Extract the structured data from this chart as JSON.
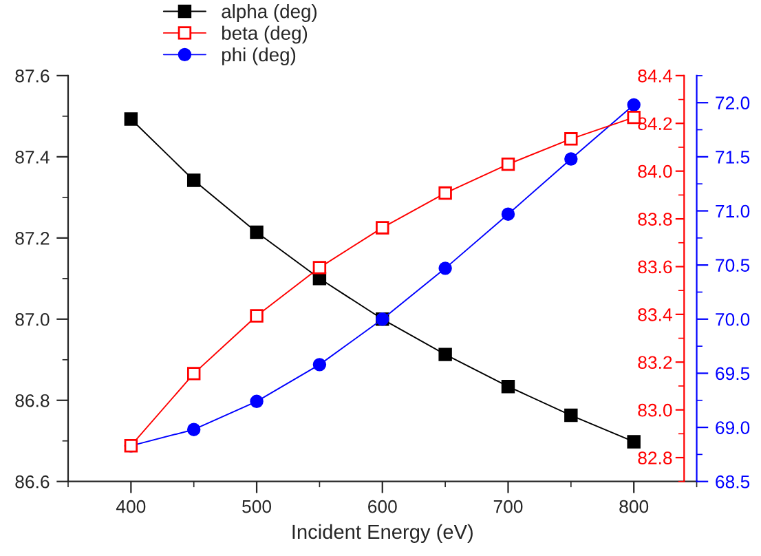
{
  "chart_data": {
    "type": "line",
    "xlabel": "Incident Energy (eV)",
    "x": [
      400,
      450,
      500,
      550,
      600,
      650,
      700,
      750,
      800
    ],
    "series": [
      {
        "name": "alpha (deg)",
        "color": "#000000",
        "marker": "square",
        "values": [
          87.493,
          87.342,
          87.214,
          87.1,
          87.0,
          86.913,
          86.834,
          86.763,
          86.698
        ]
      },
      {
        "name": "beta (deg)",
        "color": "#ff0000",
        "marker": "square-open",
        "axis": "y2",
        "values": [
          82.85,
          83.152,
          83.394,
          83.596,
          83.763,
          83.908,
          84.029,
          84.135,
          84.225
        ]
      },
      {
        "name": "phi (deg)",
        "color": "#0000ff",
        "marker": "circle",
        "axis": "y3",
        "values": [
          68.83,
          68.98,
          69.24,
          69.58,
          70.0,
          70.47,
          70.97,
          71.48,
          71.98
        ]
      }
    ],
    "xlim": [
      350,
      850
    ],
    "xticks": [
      400,
      500,
      600,
      700,
      800
    ],
    "ylim": [
      86.6,
      87.6
    ],
    "yticks": [
      {
        "value": 86.6,
        "label": "86.6"
      },
      {
        "value": 86.8,
        "label": "86.8"
      },
      {
        "value": 87.0,
        "label": "87.0"
      },
      {
        "value": 87.2,
        "label": "87.2"
      },
      {
        "value": 87.4,
        "label": "87.4"
      },
      {
        "value": 87.6,
        "label": "87.6"
      }
    ],
    "y2lim": [
      82.7,
      84.4
    ],
    "y2ticks": [
      {
        "value": 82.8,
        "label": "82.8"
      },
      {
        "value": 83.0,
        "label": "83.0"
      },
      {
        "value": 83.2,
        "label": "83.2"
      },
      {
        "value": 83.4,
        "label": "83.4"
      },
      {
        "value": 83.6,
        "label": "83.6"
      },
      {
        "value": 83.8,
        "label": "83.8"
      },
      {
        "value": 84.0,
        "label": "84.0"
      },
      {
        "value": 84.2,
        "label": "84.2"
      },
      {
        "value": 84.4,
        "label": "84.4"
      }
    ],
    "y3lim": [
      68.5,
      72.25
    ],
    "y3ticks": [
      {
        "value": 68.5,
        "label": "68.5"
      },
      {
        "value": 69.0,
        "label": "69.0"
      },
      {
        "value": 69.5,
        "label": "69.5"
      },
      {
        "value": 70.0,
        "label": "70.0"
      },
      {
        "value": 70.5,
        "label": "70.5"
      },
      {
        "value": 71.0,
        "label": "71.0"
      },
      {
        "value": 71.5,
        "label": "71.5"
      },
      {
        "value": 72.0,
        "label": "72.0"
      }
    ],
    "grid": false,
    "legend": "top"
  }
}
